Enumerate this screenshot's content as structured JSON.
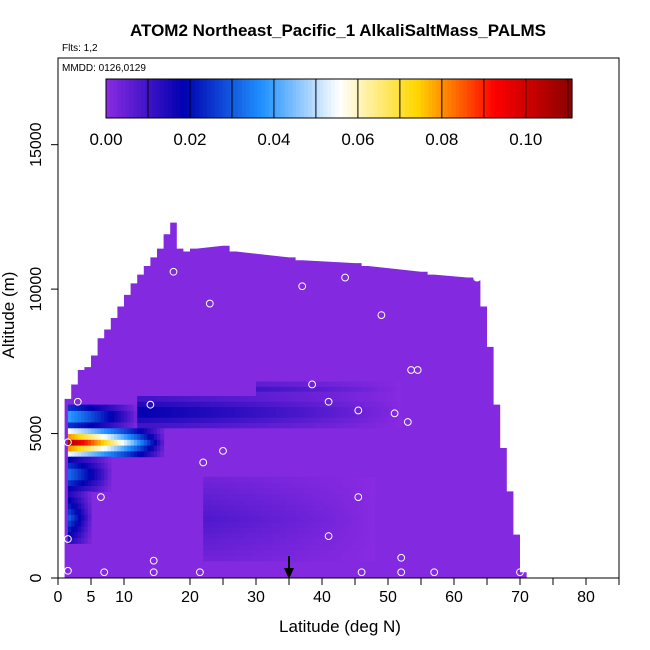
{
  "chart_data": {
    "type": "heatmap",
    "title": "ATOM2 Northeast_Pacific_1 AlkaliSaltMass_PALMS",
    "subtitle_flights": "Flts: 1,2",
    "subtitle_dates": "MMDD: 0126,0129",
    "xlabel": "Latitude (deg N)",
    "ylabel": "Altitude (m)",
    "xlim": [
      0,
      85
    ],
    "ylim": [
      0,
      18000
    ],
    "x_ticks": [
      0,
      5,
      10,
      20,
      30,
      40,
      50,
      60,
      70,
      80
    ],
    "x_minor_ticks": [
      25,
      35,
      45,
      55,
      65,
      75,
      85
    ],
    "y_ticks": [
      0,
      5000,
      10000,
      15000
    ],
    "colorbar": {
      "range": [
        0,
        0.111
      ],
      "ticks": [
        0.0,
        0.02,
        0.04,
        0.06,
        0.08,
        0.1
      ],
      "tick_labels": [
        "0.00",
        "0.02",
        "0.04",
        "0.06",
        "0.08",
        "0.10"
      ],
      "colors": [
        "#8a2be2",
        "#0000b0",
        "#1e90ff",
        "#ffffff",
        "#ffd700",
        "#ff0000",
        "#8b0000"
      ]
    },
    "curtain_envelope": {
      "lat": [
        1.5,
        2.5,
        3.5,
        4.5,
        5.5,
        6.5,
        7.5,
        8.5,
        9.5,
        10.5,
        11.5,
        12.5,
        13.5,
        14.5,
        15.5,
        16.5,
        17.5,
        18.5,
        19.5,
        20.5,
        25.5,
        26.5,
        35.5,
        36.5,
        45.5,
        46.5,
        55.5,
        56.5,
        62.5,
        63.5,
        64.5,
        65.5,
        66.5,
        67.5,
        68.5,
        69.5,
        70.5
      ],
      "top_alt": [
        6200,
        6700,
        7200,
        7300,
        7700,
        8300,
        8600,
        9000,
        9400,
        9800,
        10200,
        10500,
        10800,
        11100,
        11400,
        11900,
        12300,
        11400,
        11300,
        11400,
        11500,
        11300,
        11100,
        11000,
        10900,
        10800,
        10600,
        10500,
        10400,
        10300,
        9400,
        8000,
        6000,
        4500,
        3000,
        1500,
        200
      ]
    },
    "enhanced_regions": [
      {
        "lat_range": [
          1.5,
          16
        ],
        "alt_range": [
          4200,
          5200
        ],
        "max_value": 0.105
      },
      {
        "lat_range": [
          1.5,
          12
        ],
        "alt_range": [
          5200,
          6000
        ],
        "max_value": 0.045
      },
      {
        "lat_range": [
          1.5,
          8
        ],
        "alt_range": [
          3000,
          4200
        ],
        "max_value": 0.035
      },
      {
        "lat_range": [
          1.5,
          5
        ],
        "alt_range": [
          1200,
          3000
        ],
        "max_value": 0.03
      },
      {
        "lat_range": [
          12,
          52
        ],
        "alt_range": [
          5200,
          6300
        ],
        "max_value": 0.02
      },
      {
        "lat_range": [
          30,
          52
        ],
        "alt_range": [
          6300,
          6800
        ],
        "max_value": 0.01
      },
      {
        "lat_range": [
          22,
          48
        ],
        "alt_range": [
          600,
          3500
        ],
        "max_value": 0.008
      }
    ],
    "sample_points": [
      {
        "lat": 1.5,
        "alt": 250
      },
      {
        "lat": 1.5,
        "alt": 1350
      },
      {
        "lat": 3,
        "alt": 6100
      },
      {
        "lat": 1.5,
        "alt": 4700
      },
      {
        "lat": 6.5,
        "alt": 2800
      },
      {
        "lat": 7,
        "alt": 200
      },
      {
        "lat": 14,
        "alt": 6000
      },
      {
        "lat": 14.5,
        "alt": 600
      },
      {
        "lat": 14.5,
        "alt": 200
      },
      {
        "lat": 17.5,
        "alt": 10600
      },
      {
        "lat": 21.5,
        "alt": 200
      },
      {
        "lat": 22,
        "alt": 4000
      },
      {
        "lat": 23,
        "alt": 9500
      },
      {
        "lat": 25,
        "alt": 4400
      },
      {
        "lat": 37,
        "alt": 10100
      },
      {
        "lat": 38.5,
        "alt": 6700
      },
      {
        "lat": 41,
        "alt": 6100
      },
      {
        "lat": 41,
        "alt": 1450
      },
      {
        "lat": 43.5,
        "alt": 10400
      },
      {
        "lat": 45.5,
        "alt": 5800
      },
      {
        "lat": 45.5,
        "alt": 2800
      },
      {
        "lat": 46,
        "alt": 200
      },
      {
        "lat": 49,
        "alt": 9100
      },
      {
        "lat": 51,
        "alt": 5700
      },
      {
        "lat": 52,
        "alt": 700
      },
      {
        "lat": 52,
        "alt": 200
      },
      {
        "lat": 53,
        "alt": 5400
      },
      {
        "lat": 53.5,
        "alt": 7200
      },
      {
        "lat": 54.5,
        "alt": 7200
      },
      {
        "lat": 57,
        "alt": 200
      },
      {
        "lat": 63.5,
        "alt": 10400
      },
      {
        "lat": 70,
        "alt": 200
      }
    ],
    "arrow_lat": 35
  }
}
